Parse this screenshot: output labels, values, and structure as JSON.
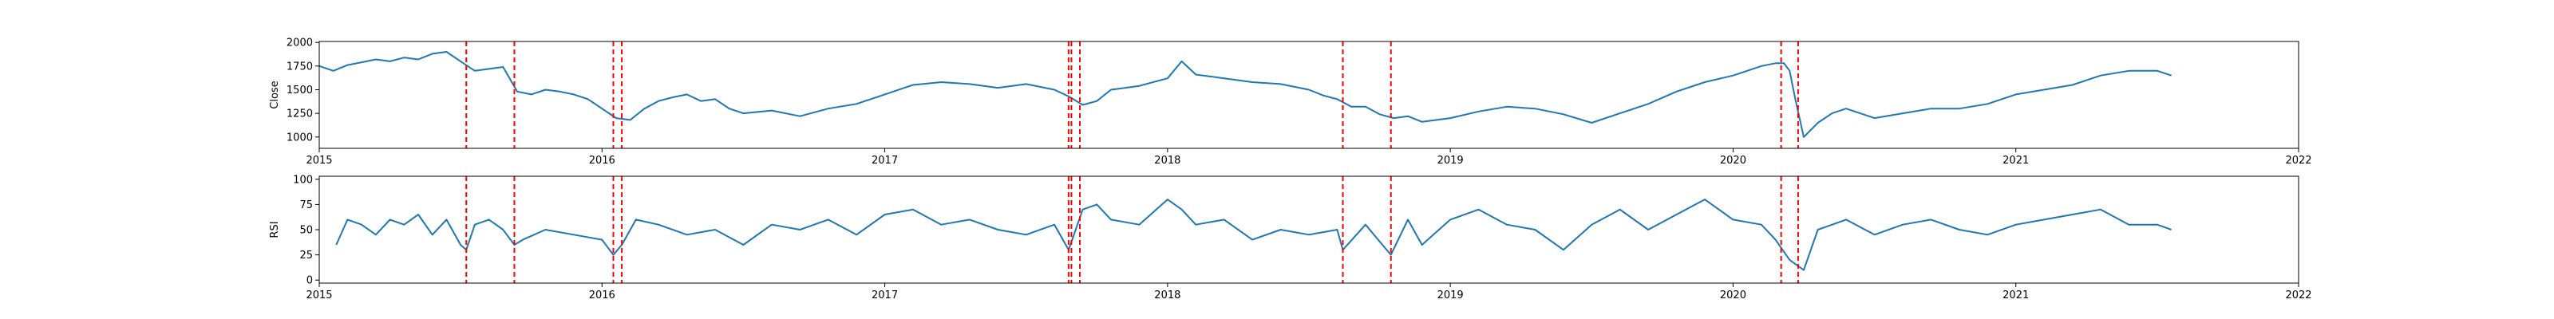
{
  "chart_data": [
    {
      "type": "line",
      "title": "",
      "xlabel": "",
      "ylabel": "Close",
      "xlim": [
        2015,
        2022
      ],
      "ylim": [
        880,
        2010
      ],
      "x_ticks": [
        2015,
        2016,
        2017,
        2018,
        2019,
        2020,
        2021,
        2022
      ],
      "x_tick_labels": [
        "2015",
        "2016",
        "2017",
        "2018",
        "2019",
        "2020",
        "2021",
        "2022"
      ],
      "y_ticks": [
        1000,
        1250,
        1500,
        1750,
        2000
      ],
      "y_tick_labels": [
        "1000",
        "1250",
        "1500",
        "1750",
        "2000"
      ],
      "grid": false,
      "series": [
        {
          "color": "#1f77b4",
          "x": [
            2015.0,
            2015.05,
            2015.1,
            2015.15,
            2015.2,
            2015.25,
            2015.3,
            2015.35,
            2015.4,
            2015.45,
            2015.5,
            2015.55,
            2015.6,
            2015.65,
            2015.7,
            2015.75,
            2015.8,
            2015.85,
            2015.9,
            2015.95,
            2016.0,
            2016.05,
            2016.1,
            2016.15,
            2016.2,
            2016.25,
            2016.3,
            2016.35,
            2016.4,
            2016.45,
            2016.5,
            2016.6,
            2016.7,
            2016.8,
            2016.9,
            2017.0,
            2017.1,
            2017.2,
            2017.3,
            2017.4,
            2017.5,
            2017.6,
            2017.65,
            2017.7,
            2017.75,
            2017.8,
            2017.9,
            2018.0,
            2018.05,
            2018.1,
            2018.2,
            2018.3,
            2018.4,
            2018.5,
            2018.55,
            2018.6,
            2018.65,
            2018.7,
            2018.75,
            2018.8,
            2018.85,
            2018.9,
            2019.0,
            2019.1,
            2019.2,
            2019.3,
            2019.4,
            2019.5,
            2019.6,
            2019.7,
            2019.8,
            2019.9,
            2020.0,
            2020.05,
            2020.1,
            2020.15,
            2020.18,
            2020.2,
            2020.22,
            2020.25,
            2020.3,
            2020.35,
            2020.4,
            2020.5,
            2020.6,
            2020.7,
            2020.8,
            2020.9,
            2021.0,
            2021.1,
            2021.2,
            2021.3,
            2021.4,
            2021.5,
            2021.55
          ],
          "y": [
            1750,
            1700,
            1760,
            1790,
            1820,
            1800,
            1840,
            1820,
            1880,
            1900,
            1800,
            1700,
            1720,
            1740,
            1480,
            1450,
            1500,
            1480,
            1450,
            1400,
            1300,
            1200,
            1180,
            1300,
            1380,
            1420,
            1450,
            1380,
            1400,
            1300,
            1250,
            1280,
            1220,
            1300,
            1350,
            1450,
            1550,
            1580,
            1560,
            1520,
            1560,
            1500,
            1430,
            1340,
            1380,
            1500,
            1540,
            1620,
            1800,
            1660,
            1620,
            1580,
            1560,
            1500,
            1440,
            1400,
            1320,
            1320,
            1240,
            1200,
            1220,
            1160,
            1200,
            1270,
            1320,
            1300,
            1240,
            1150,
            1250,
            1350,
            1480,
            1580,
            1650,
            1700,
            1750,
            1780,
            1780,
            1700,
            1400,
            1000,
            1150,
            1250,
            1300,
            1200,
            1250,
            1300,
            1300,
            1350,
            1450,
            1500,
            1550,
            1650,
            1700,
            1700,
            1650
          ]
        }
      ],
      "vertical_markers": {
        "color": "#ff0000",
        "x": [
          2015.52,
          2015.69,
          2016.04,
          2016.07,
          2017.65,
          2017.66,
          2017.69,
          2018.62,
          2018.79,
          2020.17,
          2020.23
        ]
      }
    },
    {
      "type": "line",
      "title": "",
      "xlabel": "",
      "ylabel": "RSI",
      "xlim": [
        2015,
        2022
      ],
      "ylim": [
        -3,
        103
      ],
      "x_ticks": [
        2015,
        2016,
        2017,
        2018,
        2019,
        2020,
        2021,
        2022
      ],
      "x_tick_labels": [
        "2015",
        "2016",
        "2017",
        "2018",
        "2019",
        "2020",
        "2021",
        "2022"
      ],
      "y_ticks": [
        0,
        25,
        50,
        75,
        100
      ],
      "y_tick_labels": [
        "0",
        "25",
        "50",
        "75",
        "100"
      ],
      "grid": false,
      "series": [
        {
          "color": "#1f77b4",
          "x": [
            2015.06,
            2015.1,
            2015.15,
            2015.2,
            2015.25,
            2015.3,
            2015.35,
            2015.4,
            2015.45,
            2015.5,
            2015.52,
            2015.55,
            2015.6,
            2015.65,
            2015.69,
            2015.72,
            2015.8,
            2015.9,
            2016.0,
            2016.04,
            2016.07,
            2016.12,
            2016.2,
            2016.3,
            2016.4,
            2016.5,
            2016.6,
            2016.7,
            2016.8,
            2016.9,
            2017.0,
            2017.1,
            2017.2,
            2017.3,
            2017.4,
            2017.5,
            2017.6,
            2017.65,
            2017.7,
            2017.75,
            2017.8,
            2017.9,
            2018.0,
            2018.05,
            2018.1,
            2018.2,
            2018.3,
            2018.4,
            2018.5,
            2018.6,
            2018.62,
            2018.7,
            2018.79,
            2018.85,
            2018.9,
            2019.0,
            2019.1,
            2019.2,
            2019.3,
            2019.4,
            2019.5,
            2019.6,
            2019.7,
            2019.8,
            2019.9,
            2020.0,
            2020.1,
            2020.15,
            2020.2,
            2020.25,
            2020.3,
            2020.4,
            2020.5,
            2020.6,
            2020.7,
            2020.8,
            2020.9,
            2021.0,
            2021.1,
            2021.2,
            2021.3,
            2021.4,
            2021.5,
            2021.55
          ],
          "y": [
            35,
            60,
            55,
            45,
            60,
            55,
            65,
            45,
            60,
            35,
            30,
            55,
            60,
            50,
            35,
            40,
            50,
            45,
            40,
            25,
            35,
            60,
            55,
            45,
            50,
            35,
            55,
            50,
            60,
            45,
            65,
            70,
            55,
            60,
            50,
            45,
            55,
            30,
            70,
            75,
            60,
            55,
            80,
            70,
            55,
            60,
            40,
            50,
            45,
            50,
            30,
            55,
            25,
            60,
            35,
            60,
            70,
            55,
            50,
            30,
            55,
            70,
            50,
            65,
            80,
            60,
            55,
            40,
            20,
            10,
            50,
            60,
            45,
            55,
            60,
            50,
            45,
            55,
            60,
            65,
            70,
            55,
            55,
            50
          ]
        }
      ],
      "vertical_markers": {
        "color": "#ff0000",
        "x": [
          2015.52,
          2015.69,
          2016.04,
          2016.07,
          2017.65,
          2017.66,
          2017.69,
          2018.62,
          2018.79,
          2020.17,
          2020.23
        ]
      }
    }
  ]
}
